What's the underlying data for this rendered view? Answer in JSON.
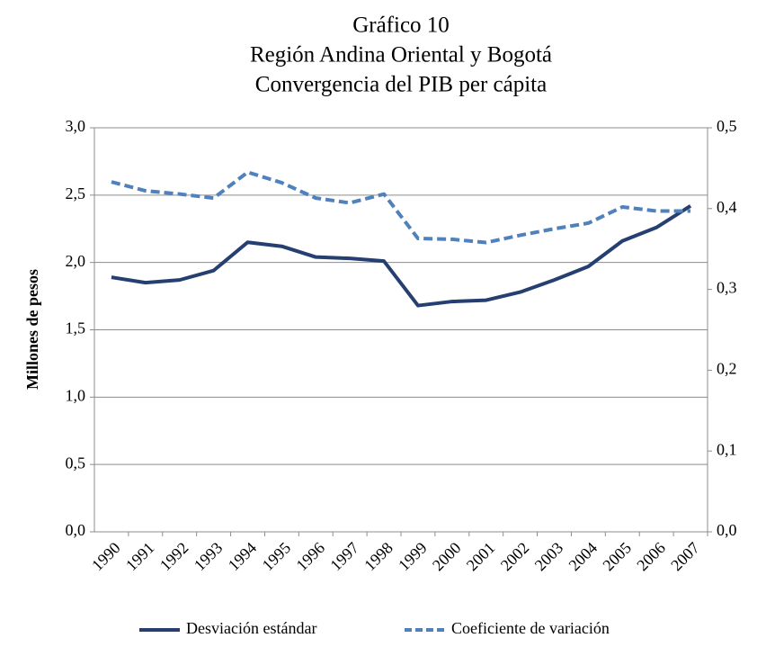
{
  "chart_data": {
    "type": "line",
    "title": [
      "Gráfico 10",
      "Región Andina Oriental y Bogotá",
      "Convergencia del PIB per cápita"
    ],
    "ylabel": "Millones de pesos",
    "categories": [
      "1990",
      "1991",
      "1992",
      "1993",
      "1994",
      "1995",
      "1996",
      "1997",
      "1998",
      "1999",
      "2000",
      "2001",
      "2002",
      "2003",
      "2004",
      "2005",
      "2006",
      "2007"
    ],
    "series": [
      {
        "name": "Desviación estándar",
        "color": "#243f70",
        "dash": false,
        "values": [
          1.89,
          1.85,
          1.87,
          1.94,
          2.15,
          2.12,
          2.04,
          2.03,
          2.01,
          1.68,
          1.71,
          1.72,
          1.78,
          1.87,
          1.97,
          2.16,
          2.26,
          2.42
        ]
      },
      {
        "name": "Coeficiente de variación",
        "color": "#4f81bd",
        "dash": true,
        "axis": "y2",
        "values": [
          0.433,
          0.422,
          0.418,
          0.413,
          0.445,
          0.432,
          0.413,
          0.407,
          0.418,
          0.363,
          0.362,
          0.358,
          0.367,
          0.375,
          0.382,
          0.402,
          0.397,
          0.397
        ]
      }
    ],
    "ylim": [
      0,
      3
    ],
    "yticks": [
      {
        "value": 0,
        "label": "0,0"
      },
      {
        "value": 0.5,
        "label": "0,5"
      },
      {
        "value": 1,
        "label": "1,0"
      },
      {
        "value": 1.5,
        "label": "1,5"
      },
      {
        "value": 2,
        "label": "2,0"
      },
      {
        "value": 2.5,
        "label": "2,5"
      },
      {
        "value": 3,
        "label": "3,0"
      }
    ],
    "y2lim": [
      0,
      0.5
    ],
    "y2ticks": [
      {
        "value": 0,
        "label": "0,0"
      },
      {
        "value": 0.1,
        "label": "0,1"
      },
      {
        "value": 0.2,
        "label": "0,2"
      },
      {
        "value": 0.3,
        "label": "0,3"
      },
      {
        "value": 0.4,
        "label": "0,4"
      },
      {
        "value": 0.5,
        "label": "0,5"
      }
    ],
    "grid": true,
    "legend": "bottom"
  }
}
